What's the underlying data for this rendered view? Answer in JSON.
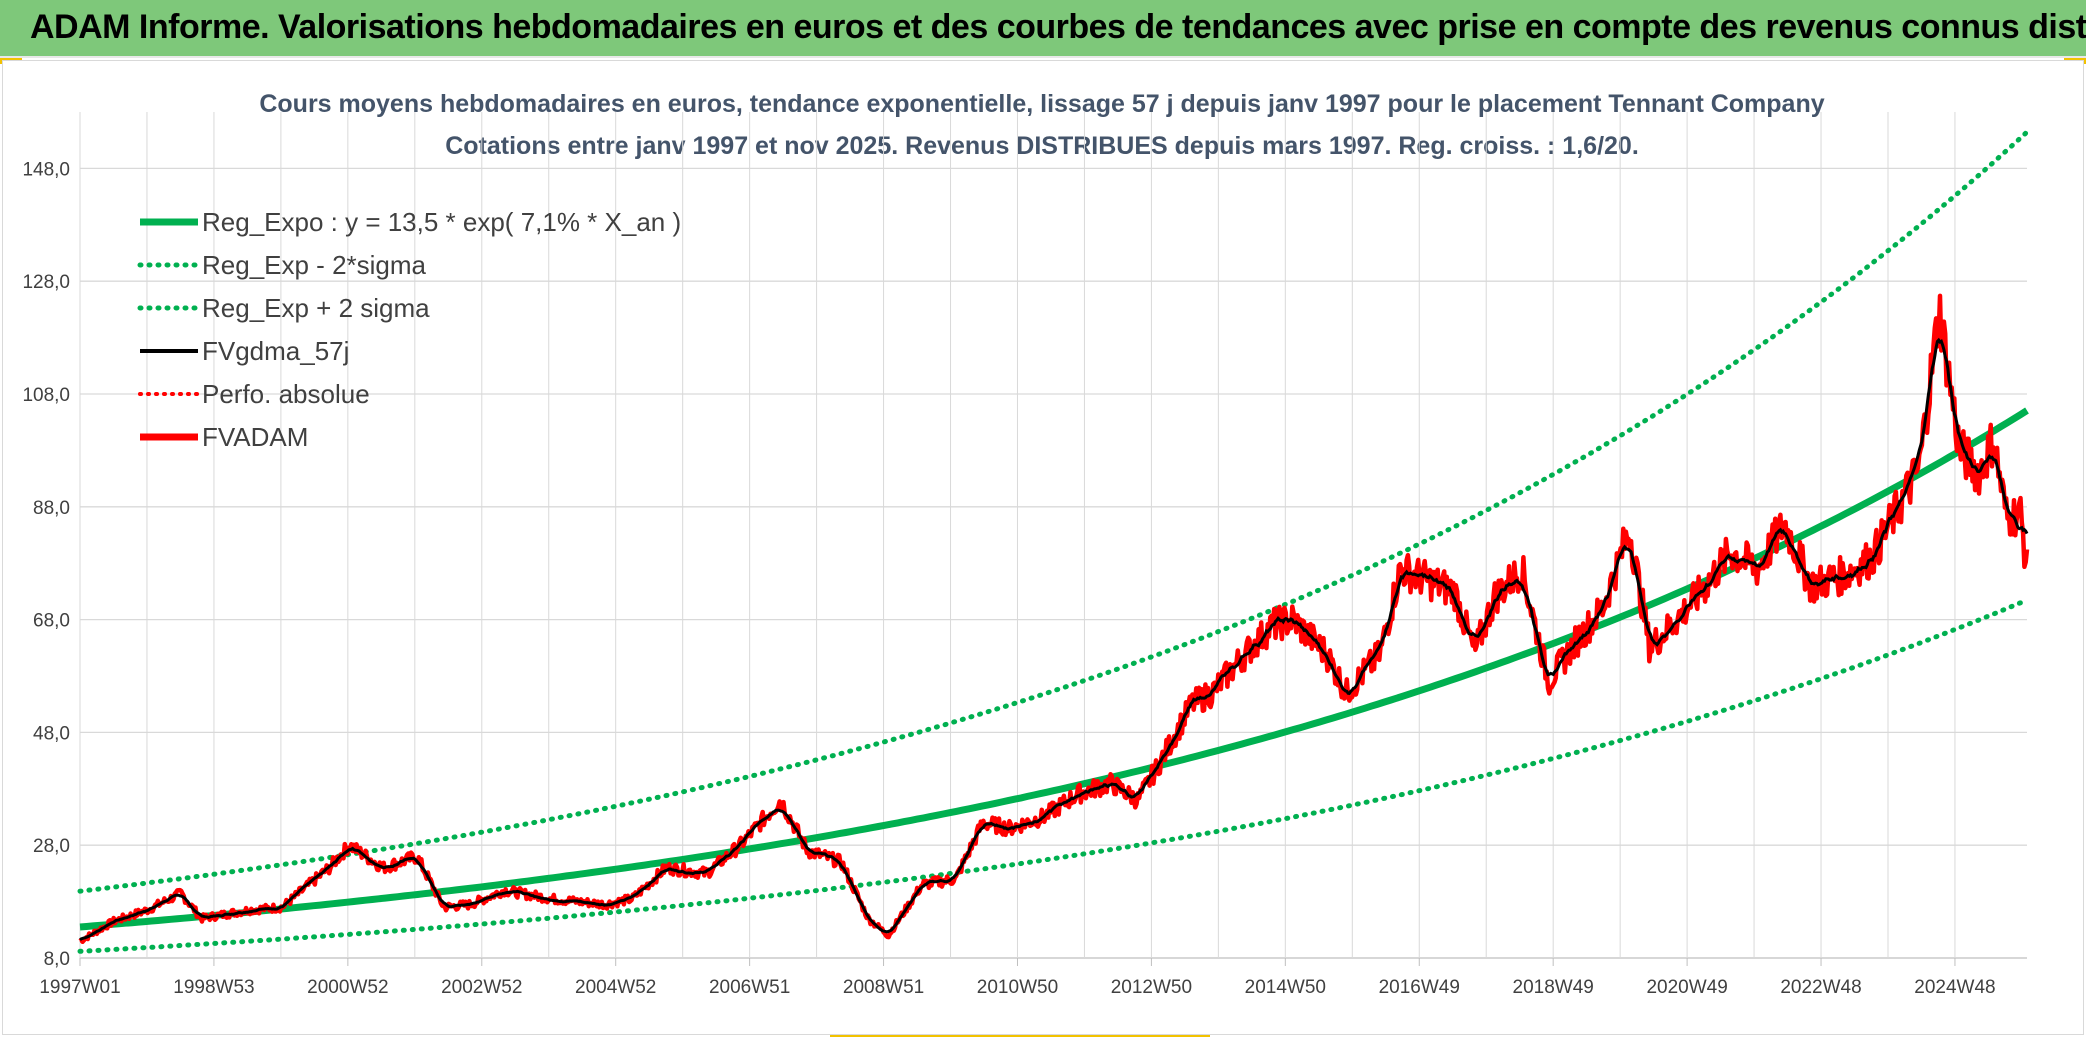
{
  "banner": {
    "title": "ADAM Informe. Valorisations hebdomadaires en euros et des courbes de tendances avec prise en compte des revenus connus distribués"
  },
  "colors": {
    "banner_bg": "#7ec87a",
    "trend_green": "#00b050",
    "price_red": "#ff0000",
    "ma_black": "#000000",
    "grid": "#d9d9d9"
  },
  "chart_data": {
    "type": "line",
    "title": "Cours moyens hebdomadaires en euros, tendance exponentielle, lissage 57 j depuis janv 1997 pour le placement Tennant Company",
    "subtitle": "Cotations entre janv 1997 et nov 2025. Revenus DISTRIBUES depuis mars 1997. Reg. croiss. : 1,6/20.",
    "xlabel": "",
    "ylabel": "",
    "ylim": [
      8,
      158
    ],
    "y_ticks": [
      "8,0",
      "28,0",
      "48,0",
      "68,0",
      "88,0",
      "108,0",
      "128,0",
      "148,0"
    ],
    "x_ticks": [
      "1997W01",
      "1998W53",
      "2000W52",
      "2002W52",
      "2004W52",
      "2006W51",
      "2008W51",
      "2010W50",
      "2012W50",
      "2014W50",
      "2016W49",
      "2018W49",
      "2020W49",
      "2022W48",
      "2024W48"
    ],
    "x_range_years": [
      1997.0,
      2025.9
    ],
    "grid": "on",
    "legend_placement": "top-left",
    "regression": {
      "a": 13.5,
      "rate": 0.071,
      "sigma_factor": 1.47
    },
    "series": [
      {
        "name": "Reg_Expo : y = 13,5 * exp( 7,1% *  X_an )",
        "style": "solid-green"
      },
      {
        "name": "Reg_Exp - 2*sigma",
        "style": "dotted-green"
      },
      {
        "name": "Reg_Exp + 2 sigma",
        "style": "dotted-green"
      },
      {
        "name": "FVgdma_57j",
        "style": "solid-black"
      },
      {
        "name": "Perfo. absolue",
        "style": "dotted-red"
      },
      {
        "name": "FVADAM",
        "style": "solid-red",
        "points": [
          [
            1997.0,
            11
          ],
          [
            1997.5,
            14.5
          ],
          [
            1998.0,
            16.5
          ],
          [
            1998.5,
            19.5
          ],
          [
            1998.8,
            15
          ],
          [
            1999.5,
            16.5
          ],
          [
            2000.0,
            17
          ],
          [
            2000.7,
            24
          ],
          [
            2001.0,
            28
          ],
          [
            2001.5,
            24
          ],
          [
            2002.0,
            26
          ],
          [
            2002.4,
            17
          ],
          [
            2002.8,
            17.5
          ],
          [
            2003.3,
            20
          ],
          [
            2004.0,
            18.5
          ],
          [
            2004.8,
            17.5
          ],
          [
            2005.2,
            18.5
          ],
          [
            2005.7,
            24
          ],
          [
            2006.3,
            23
          ],
          [
            2006.8,
            28
          ],
          [
            2007.4,
            36
          ],
          [
            2007.8,
            27
          ],
          [
            2008.3,
            25
          ],
          [
            2008.7,
            15
          ],
          [
            2009.0,
            12
          ],
          [
            2009.5,
            21
          ],
          [
            2010.0,
            22
          ],
          [
            2010.4,
            32
          ],
          [
            2010.8,
            31
          ],
          [
            2011.3,
            33
          ],
          [
            2011.8,
            37
          ],
          [
            2012.3,
            39
          ],
          [
            2012.7,
            36
          ],
          [
            2013.0,
            42
          ],
          [
            2013.5,
            53
          ],
          [
            2013.8,
            55
          ],
          [
            2014.3,
            62
          ],
          [
            2014.7,
            67
          ],
          [
            2015.0,
            68
          ],
          [
            2015.5,
            62
          ],
          [
            2015.8,
            55
          ],
          [
            2016.3,
            62
          ],
          [
            2016.6,
            77
          ],
          [
            2017.0,
            75
          ],
          [
            2017.4,
            73
          ],
          [
            2017.7,
            62
          ],
          [
            2018.0,
            72
          ],
          [
            2018.4,
            77
          ],
          [
            2018.8,
            57
          ],
          [
            2019.2,
            64
          ],
          [
            2019.6,
            70
          ],
          [
            2020.0,
            84
          ],
          [
            2020.3,
            63
          ],
          [
            2020.7,
            68
          ],
          [
            2021.0,
            72
          ],
          [
            2021.5,
            80
          ],
          [
            2021.9,
            77
          ],
          [
            2022.3,
            85
          ],
          [
            2022.7,
            74
          ],
          [
            2023.2,
            76
          ],
          [
            2023.6,
            79
          ],
          [
            2024.0,
            88
          ],
          [
            2024.3,
            95
          ],
          [
            2024.6,
            123
          ],
          [
            2024.9,
            98
          ],
          [
            2025.2,
            94
          ],
          [
            2025.4,
            100
          ],
          [
            2025.6,
            86
          ],
          [
            2025.8,
            87
          ],
          [
            2025.9,
            77
          ]
        ]
      }
    ]
  }
}
